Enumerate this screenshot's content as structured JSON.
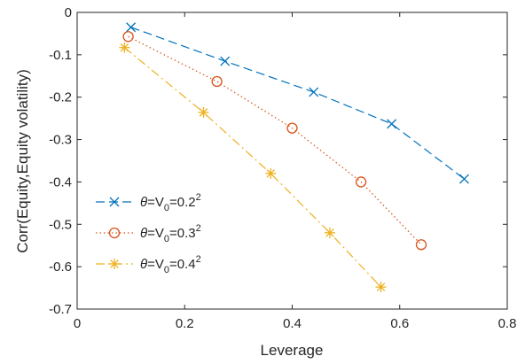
{
  "chart_data": {
    "type": "line",
    "title": "",
    "xlabel": "Leverage",
    "ylabel": "Corr(Equity,Equity volatility)",
    "xlim": [
      0,
      0.8
    ],
    "ylim": [
      -0.7,
      0
    ],
    "xticks": [
      0,
      0.2,
      0.4,
      0.6,
      0.8
    ],
    "xtick_labels": [
      "0",
      "0.2",
      "0.4",
      "0.6",
      "0.8"
    ],
    "yticks": [
      0,
      -0.1,
      -0.2,
      -0.3,
      -0.4,
      -0.5,
      -0.6,
      -0.7
    ],
    "ytick_labels": [
      "0",
      "-0.1",
      "-0.2",
      "-0.3",
      "-0.4",
      "-0.5",
      "-0.6",
      "-0.7"
    ],
    "grid": false,
    "legend_position": "bottom-left",
    "series": [
      {
        "legend": {
          "theta": "θ",
          "mid": "=V",
          "sub": "0",
          "base": "=0.2",
          "sup": "2"
        },
        "color": "#0072BD",
        "marker": "x",
        "line_style": "dashed",
        "x": [
          0.1,
          0.275,
          0.44,
          0.585,
          0.72
        ],
        "y": [
          -0.035,
          -0.115,
          -0.188,
          -0.263,
          -0.393
        ]
      },
      {
        "legend": {
          "theta": "θ",
          "mid": "=V",
          "sub": "0",
          "base": "=0.3",
          "sup": "2"
        },
        "color": "#D95319",
        "marker": "o",
        "line_style": "dotted",
        "x": [
          0.095,
          0.26,
          0.4,
          0.528,
          0.64
        ],
        "y": [
          -0.057,
          -0.163,
          -0.273,
          -0.4,
          -0.548
        ]
      },
      {
        "legend": {
          "theta": "θ",
          "mid": "=V",
          "sub": "0",
          "base": "=0.4",
          "sup": "2"
        },
        "color": "#EDB120",
        "marker": "asterisk",
        "line_style": "dashdot",
        "x": [
          0.088,
          0.235,
          0.36,
          0.47,
          0.565
        ],
        "y": [
          -0.083,
          -0.236,
          -0.38,
          -0.52,
          -0.648
        ]
      }
    ]
  }
}
